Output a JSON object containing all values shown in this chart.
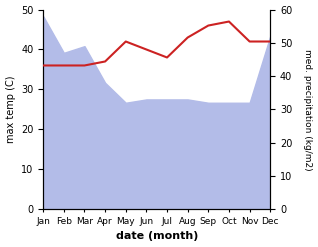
{
  "months": [
    "Jan",
    "Feb",
    "Mar",
    "Apr",
    "May",
    "Jun",
    "Jul",
    "Aug",
    "Sep",
    "Oct",
    "Nov",
    "Dec"
  ],
  "precipitation": [
    58,
    47,
    49,
    38,
    32,
    33,
    33,
    33,
    32,
    32,
    32,
    52
  ],
  "max_temp": [
    36,
    36,
    36,
    37,
    42,
    40,
    38,
    43,
    46,
    47,
    42,
    42
  ],
  "precip_color": "#b3bce8",
  "temp_color": "#cc2222",
  "temp_ylim": [
    0,
    50
  ],
  "precip_ylim": [
    0,
    60
  ],
  "xlabel": "date (month)",
  "ylabel_left": "max temp (C)",
  "ylabel_right": "med. precipitation (kg/m2)",
  "temp_yticks": [
    0,
    10,
    20,
    30,
    40,
    50
  ],
  "precip_yticks": [
    0,
    10,
    20,
    30,
    40,
    50,
    60
  ]
}
